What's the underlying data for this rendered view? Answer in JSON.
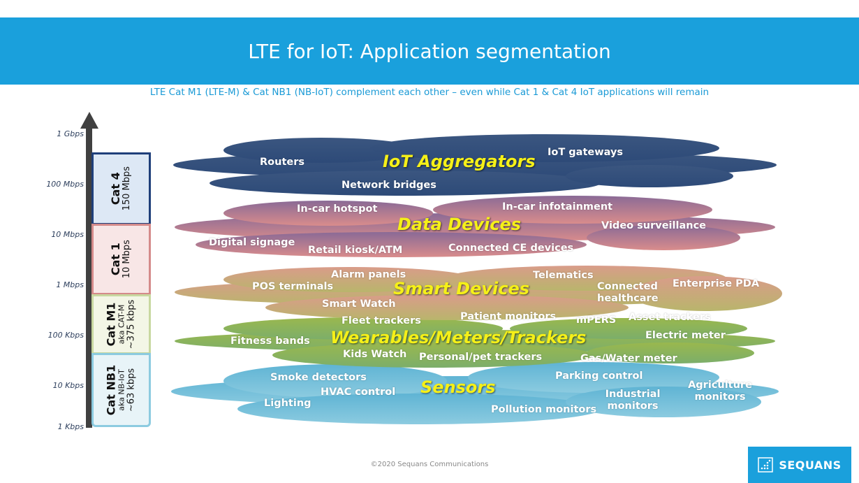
{
  "header": {
    "title": "LTE for IoT: Application segmentation"
  },
  "subtitle": "LTE Cat M1 (LTE-M) & Cat NB1 (NB-IoT) complement each other – even while Cat 1 & Cat 4 IoT applications will remain",
  "axis": {
    "ticks": [
      "1 Gbps",
      "100 Mbps",
      "10 Mbps",
      "1 Mbps",
      "100 Kbps",
      "10 Kbps",
      "1 Kbps"
    ]
  },
  "categories": [
    {
      "name": "Cat 4",
      "rate": "150 Mbps",
      "color": "#1f3f7a"
    },
    {
      "name": "Cat 1",
      "rate": "10 Mbps",
      "color": "#d48a8a"
    },
    {
      "name": "Cat M1",
      "aka": "aka CAT-M",
      "rate": "~375 kbps",
      "color": "#c8d8a0"
    },
    {
      "name": "Cat NB1",
      "aka": "aka NB-IoT",
      "rate": "~63 kbps",
      "color": "#8ccbe0"
    }
  ],
  "segments": {
    "aggregators": {
      "title": "IoT Aggregators",
      "items": [
        "Routers",
        "IoT gateways",
        "Network bridges"
      ]
    },
    "data": {
      "title": "Data Devices",
      "items": [
        "In-car hotspot",
        "In-car infotainment",
        "Video surveillance",
        "Digital signage",
        "Retail kiosk/ATM",
        "Connected CE devices"
      ]
    },
    "smart": {
      "title": "Smart Devices",
      "items": [
        "Alarm panels",
        "Telematics",
        "POS terminals",
        "Connected healthcare",
        "Enterprise PDA",
        "Smart Watch",
        "Patient monitors",
        "mPERS",
        "Asset trackers"
      ]
    },
    "wearables": {
      "title": "Wearables/Meters/Trackers",
      "items": [
        "Fleet trackers",
        "Fitness bands",
        "Electric meter",
        "Kids Watch",
        "Personal/pet trackers",
        "Gas/Water meter"
      ]
    },
    "sensors": {
      "title": "Sensors",
      "items": [
        "Smoke detectors",
        "Parking control",
        "Agriculture monitors",
        "HVAC control",
        "Lighting",
        "Industrial monitors",
        "Pollution monitors"
      ]
    }
  },
  "footer": {
    "copyright": "©2020 Sequans Communications",
    "logo": "SEQUANS"
  }
}
